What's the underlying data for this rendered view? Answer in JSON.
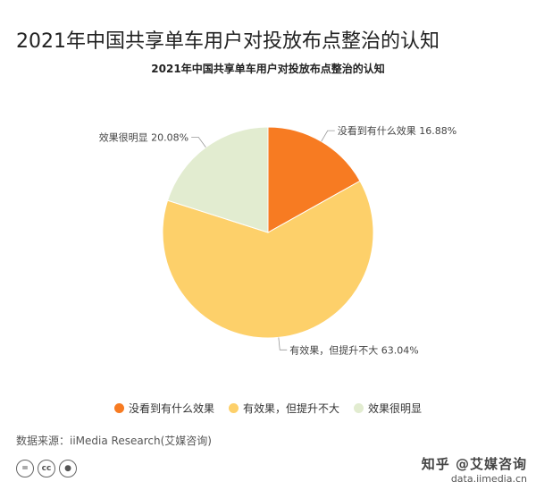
{
  "header": {
    "title": "2021年中国共享单车用户对投放布点整治的认知"
  },
  "chart_data": {
    "type": "pie",
    "title": "2021年中国共享单车用户对投放布点整治的认知",
    "categories": [
      "没看到有什么效果",
      "有效果，但提升不大",
      "效果很明显"
    ],
    "values": [
      16.88,
      63.04,
      20.08
    ],
    "value_labels": [
      "16.88%",
      "63.04%",
      "20.08%"
    ],
    "colors": [
      "#f77b22",
      "#fdd06a",
      "#e2ecd0"
    ],
    "legend_position": "bottom"
  },
  "footer": {
    "source": "数据来源：iiMedia Research(艾媒咨询)",
    "watermark_line1": "知乎 @艾媒咨询",
    "watermark_line2": "data.iimedia.cn"
  }
}
